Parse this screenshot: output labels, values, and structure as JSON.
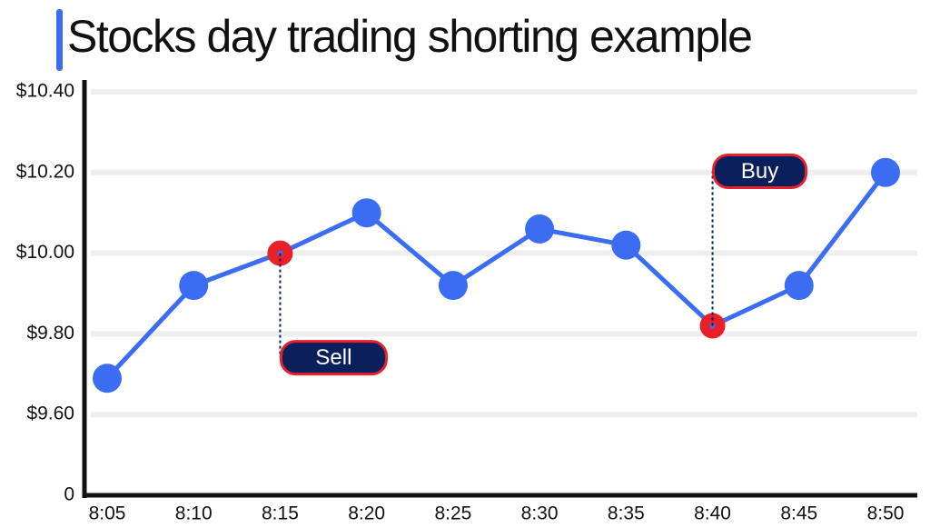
{
  "chart_data": {
    "type": "line",
    "title": "Stocks day trading shorting example",
    "categories": [
      "8:05",
      "8:10",
      "8:15",
      "8:20",
      "8:25",
      "8:30",
      "8:35",
      "8:40",
      "8:45",
      "8:50"
    ],
    "series": [
      {
        "color": "#3b6cf2",
        "values": [
          9.69,
          9.92,
          10.0,
          10.1,
          9.92,
          10.06,
          10.02,
          9.82,
          9.92,
          10.2
        ]
      }
    ],
    "ylim": [
      9.4,
      10.4
    ],
    "yticks": [
      {
        "value": 10.4,
        "label": "$10.40"
      },
      {
        "value": 10.2,
        "label": "$10.20"
      },
      {
        "value": 10.0,
        "label": "$10.00"
      },
      {
        "value": 9.8,
        "label": "$9.80"
      },
      {
        "value": 9.6,
        "label": "$9.60"
      },
      0
    ],
    "axis_break": true,
    "grid": true,
    "annotations": [
      {
        "text": "Sell",
        "at": "8:15",
        "color": "#e8202a"
      },
      {
        "text": "Buy",
        "at": "8:40",
        "color": "#e8202a"
      }
    ]
  }
}
